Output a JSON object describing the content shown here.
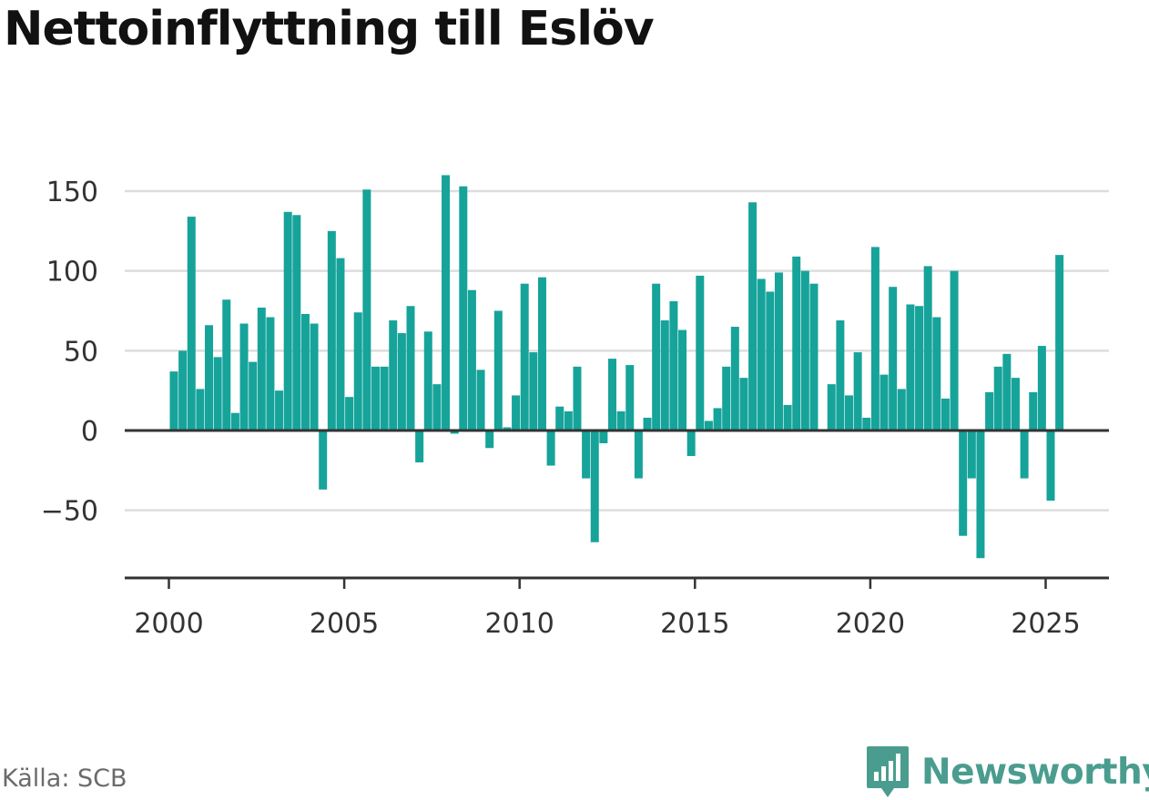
{
  "title": "Nettoinflyttning till Eslöv",
  "source": "Källa: SCB",
  "brand": {
    "name": "Newsworthy",
    "color": "#4a9d8e"
  },
  "colors": {
    "bar": "#16a39a",
    "grid": "#dddddd",
    "zero_line": "#333333",
    "axis": "#333333"
  },
  "chart_data": {
    "type": "bar",
    "x_unit": "year-quarter",
    "xlim": [
      1999.7,
      2026.9
    ],
    "ylim": [
      -92,
      150
    ],
    "y_ticks": [
      150,
      100,
      50,
      0,
      -50
    ],
    "y_tick_labels": [
      "150",
      "100",
      "50",
      "0",
      "−50"
    ],
    "x_ticks": [
      2000,
      2005,
      2010,
      2015,
      2020,
      2025
    ],
    "x_tick_labels": [
      "2000",
      "2005",
      "2010",
      "2015",
      "2020",
      "2025"
    ],
    "grid": "horizontal",
    "categories": [
      "2000 Q1",
      "2000 Q2",
      "2000 Q3",
      "2000 Q4",
      "2001 Q1",
      "2001 Q2",
      "2001 Q3",
      "2001 Q4",
      "2002 Q1",
      "2002 Q2",
      "2002 Q3",
      "2002 Q4",
      "2003 Q1",
      "2003 Q2",
      "2003 Q3",
      "2003 Q4",
      "2004 Q1",
      "2004 Q2",
      "2004 Q3",
      "2004 Q4",
      "2005 Q1",
      "2005 Q2",
      "2005 Q3",
      "2005 Q4",
      "2006 Q1",
      "2006 Q2",
      "2006 Q3",
      "2006 Q4",
      "2007 Q1",
      "2007 Q2",
      "2007 Q3",
      "2007 Q4",
      "2008 Q1",
      "2008 Q2",
      "2008 Q3",
      "2008 Q4",
      "2009 Q1",
      "2009 Q2",
      "2009 Q3",
      "2009 Q4",
      "2010 Q1",
      "2010 Q2",
      "2010 Q3",
      "2010 Q4",
      "2011 Q1",
      "2011 Q2",
      "2011 Q3",
      "2011 Q4",
      "2012 Q1",
      "2012 Q2",
      "2012 Q3",
      "2012 Q4",
      "2013 Q1",
      "2013 Q2",
      "2013 Q3",
      "2013 Q4",
      "2014 Q1",
      "2014 Q2",
      "2014 Q3",
      "2014 Q4",
      "2015 Q1",
      "2015 Q2",
      "2015 Q3",
      "2015 Q4",
      "2016 Q1",
      "2016 Q2",
      "2016 Q3",
      "2016 Q4",
      "2017 Q1",
      "2017 Q2",
      "2017 Q3",
      "2017 Q4",
      "2018 Q1",
      "2018 Q2",
      "2018 Q3",
      "2018 Q4",
      "2019 Q1",
      "2019 Q2",
      "2019 Q3",
      "2019 Q4",
      "2020 Q1",
      "2020 Q2",
      "2020 Q3",
      "2020 Q4",
      "2021 Q1",
      "2021 Q2",
      "2021 Q3",
      "2021 Q4",
      "2022 Q1",
      "2022 Q2",
      "2022 Q3",
      "2022 Q4",
      "2023 Q1",
      "2023 Q2",
      "2023 Q3",
      "2023 Q4",
      "2024 Q1",
      "2024 Q2",
      "2024 Q3",
      "2024 Q4",
      "2025 Q1",
      "2025 Q2",
      "2025 Q3"
    ],
    "values": [
      37,
      50,
      134,
      26,
      66,
      46,
      82,
      11,
      67,
      43,
      77,
      71,
      25,
      137,
      135,
      73,
      67,
      -37,
      125,
      108,
      21,
      74,
      151,
      40,
      40,
      69,
      61,
      78,
      -20,
      62,
      29,
      160,
      -2,
      153,
      88,
      38,
      -11,
      75,
      2,
      22,
      92,
      49,
      96,
      -22,
      15,
      12,
      40,
      -30,
      -70,
      -8,
      45,
      12,
      41,
      -30,
      8,
      92,
      69,
      81,
      63,
      -16,
      97,
      6,
      14,
      40,
      65,
      33,
      143,
      95,
      87,
      99,
      16,
      109,
      100,
      92,
      0,
      29,
      69,
      22,
      49,
      8,
      115,
      35,
      90,
      26,
      79,
      78,
      103,
      71,
      20,
      100,
      -66,
      -30,
      -80,
      24,
      40,
      48,
      33,
      -30,
      24,
      53,
      -44,
      110,
      0
    ]
  }
}
